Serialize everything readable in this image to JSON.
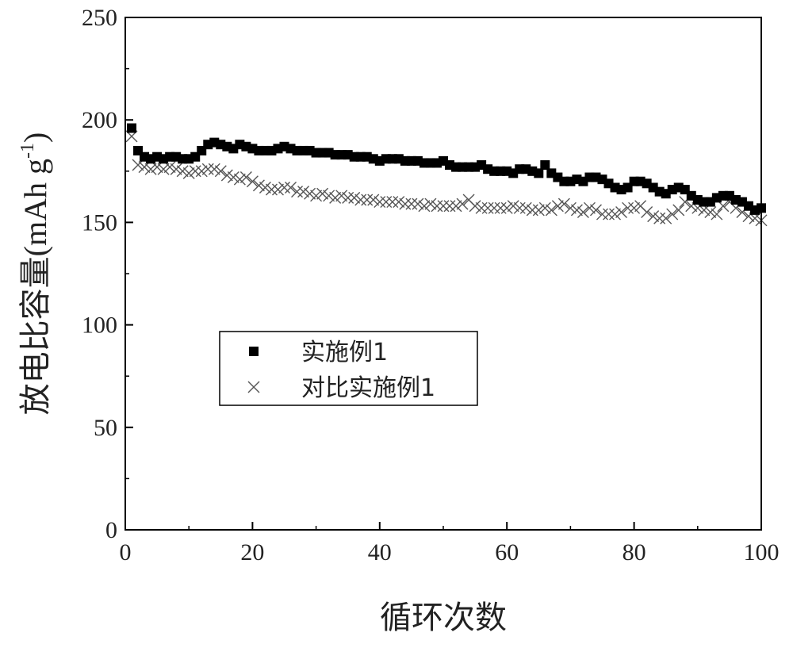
{
  "chart_data": {
    "type": "scatter",
    "xlabel": "循环次数",
    "ylabel_main": "放电比容量",
    "ylabel_unit_open": "(mAh  g",
    "ylabel_unit_sup": "-1",
    "ylabel_unit_close": ")",
    "xlim": [
      0,
      100
    ],
    "ylim": [
      0,
      250
    ],
    "xticks": [
      0,
      20,
      40,
      60,
      80,
      100
    ],
    "yticks": [
      0,
      50,
      100,
      150,
      200,
      250
    ],
    "grid": false,
    "legend_position": "center-left",
    "series": [
      {
        "name": "实施例1",
        "marker": "square",
        "color": "#000000",
        "x": [
          1,
          2,
          3,
          4,
          5,
          6,
          7,
          8,
          9,
          10,
          11,
          12,
          13,
          14,
          15,
          16,
          17,
          18,
          19,
          20,
          21,
          22,
          23,
          24,
          25,
          26,
          27,
          28,
          29,
          30,
          31,
          32,
          33,
          34,
          35,
          36,
          37,
          38,
          39,
          40,
          41,
          42,
          43,
          44,
          45,
          46,
          47,
          48,
          49,
          50,
          51,
          52,
          53,
          54,
          55,
          56,
          57,
          58,
          59,
          60,
          61,
          62,
          63,
          64,
          65,
          66,
          67,
          68,
          69,
          70,
          71,
          72,
          73,
          74,
          75,
          76,
          77,
          78,
          79,
          80,
          81,
          82,
          83,
          84,
          85,
          86,
          87,
          88,
          89,
          90,
          91,
          92,
          93,
          94,
          95,
          96,
          97,
          98,
          99,
          100
        ],
        "y": [
          196,
          185,
          182,
          181,
          182,
          181,
          182,
          182,
          181,
          181,
          182,
          185,
          188,
          189,
          188,
          187,
          186,
          188,
          187,
          186,
          185,
          185,
          185,
          186,
          187,
          186,
          185,
          185,
          185,
          184,
          184,
          184,
          183,
          183,
          183,
          182,
          182,
          182,
          181,
          180,
          181,
          181,
          181,
          180,
          180,
          180,
          179,
          179,
          179,
          180,
          178,
          177,
          177,
          177,
          177,
          178,
          176,
          175,
          175,
          175,
          174,
          176,
          176,
          175,
          174,
          178,
          174,
          172,
          170,
          170,
          171,
          170,
          172,
          172,
          171,
          169,
          167,
          166,
          167,
          170,
          170,
          169,
          167,
          165,
          164,
          166,
          167,
          166,
          163,
          161,
          160,
          160,
          162,
          163,
          163,
          161,
          160,
          158,
          156,
          157
        ]
      },
      {
        "name": "对比实施例1",
        "marker": "x",
        "color": "#555555",
        "x": [
          1,
          2,
          3,
          4,
          5,
          6,
          7,
          8,
          9,
          10,
          11,
          12,
          13,
          14,
          15,
          16,
          17,
          18,
          19,
          20,
          21,
          22,
          23,
          24,
          25,
          26,
          27,
          28,
          29,
          30,
          31,
          32,
          33,
          34,
          35,
          36,
          37,
          38,
          39,
          40,
          41,
          42,
          43,
          44,
          45,
          46,
          47,
          48,
          49,
          50,
          51,
          52,
          53,
          54,
          55,
          56,
          57,
          58,
          59,
          60,
          61,
          62,
          63,
          64,
          65,
          66,
          67,
          68,
          69,
          70,
          71,
          72,
          73,
          74,
          75,
          76,
          77,
          78,
          79,
          80,
          81,
          82,
          83,
          84,
          85,
          86,
          87,
          88,
          89,
          90,
          91,
          92,
          93,
          94,
          95,
          96,
          97,
          98,
          99,
          100
        ],
        "y": [
          192,
          178,
          177,
          176,
          177,
          176,
          177,
          176,
          175,
          174,
          175,
          175,
          176,
          176,
          175,
          173,
          172,
          171,
          172,
          170,
          168,
          167,
          166,
          166,
          167,
          167,
          165,
          165,
          164,
          163,
          164,
          163,
          162,
          163,
          162,
          162,
          161,
          161,
          161,
          160,
          160,
          160,
          160,
          159,
          159,
          159,
          158,
          159,
          158,
          158,
          158,
          158,
          159,
          161,
          158,
          157,
          157,
          157,
          157,
          157,
          158,
          157,
          157,
          156,
          156,
          157,
          156,
          158,
          159,
          157,
          156,
          155,
          157,
          156,
          154,
          154,
          154,
          155,
          157,
          157,
          158,
          155,
          153,
          152,
          152,
          154,
          156,
          160,
          158,
          157,
          156,
          155,
          154,
          158,
          160,
          157,
          155,
          153,
          152,
          151
        ]
      }
    ]
  }
}
